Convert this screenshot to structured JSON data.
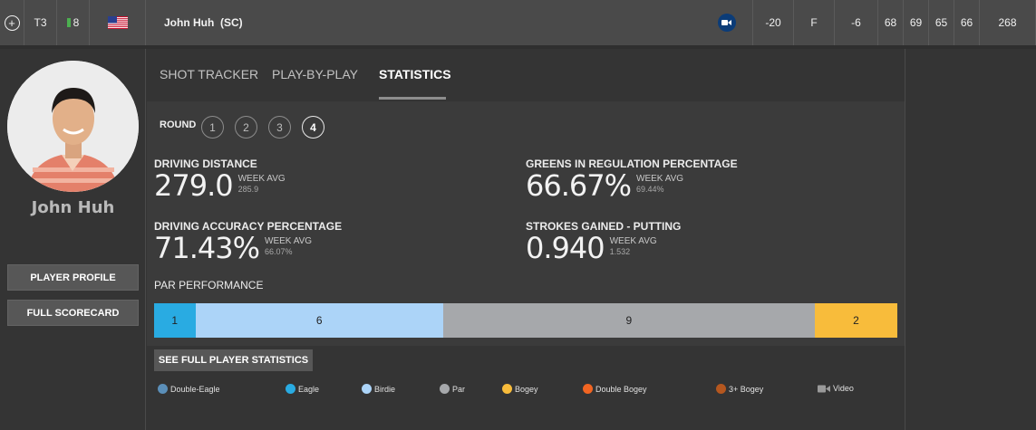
{
  "topbar": {
    "position": "T3",
    "movement": "8",
    "movement_color": "#4caf50",
    "country": "USA",
    "player_name": "John Huh  (SC)",
    "total": "-20",
    "thru": "F",
    "today": "-6",
    "rounds": [
      "68",
      "69",
      "65",
      "66"
    ],
    "strokes": "268",
    "icons": [
      "plus-circle-icon",
      "us-flag-icon",
      "video-camera-icon"
    ]
  },
  "player": {
    "name": "John Huh",
    "buttons": {
      "profile": "PLAYER PROFILE",
      "scorecard": "FULL SCORECARD"
    }
  },
  "tabs": {
    "shot_tracker": "SHOT TRACKER",
    "play_by_play": "PLAY-BY-PLAY",
    "statistics": "STATISTICS",
    "active": "STATISTICS"
  },
  "rounds": {
    "label": "ROUND",
    "options": [
      "1",
      "2",
      "3",
      "4"
    ],
    "selected": "4"
  },
  "stats": {
    "driving_distance": {
      "label": "DRIVING DISTANCE",
      "value": "279.0",
      "avg_label": "WEEK AVG",
      "avg": "285.9"
    },
    "driving_accuracy": {
      "label": "DRIVING ACCURACY PERCENTAGE",
      "value": "71.43%",
      "avg_label": "WEEK AVG",
      "avg": "66.07%"
    },
    "gir": {
      "label": "GREENS IN REGULATION PERCENTAGE",
      "value": "66.67%",
      "avg_label": "WEEK AVG",
      "avg": "69.44%"
    },
    "putting": {
      "label": "STROKES GAINED - PUTTING",
      "value": "0.940",
      "avg_label": "WEEK AVG",
      "avg": "1.532"
    }
  },
  "par_performance": {
    "title": "PAR PERFORMANCE",
    "segments": [
      {
        "type": "Eagle",
        "count": 1,
        "color": "#29abe2"
      },
      {
        "type": "Birdie",
        "count": 6,
        "color": "#acd4f8"
      },
      {
        "type": "Par",
        "count": 9,
        "color": "#a6a8ab"
      },
      {
        "type": "Bogey",
        "count": 2,
        "color": "#f8bc3b"
      }
    ]
  },
  "see_full_stats": "SEE FULL PLAYER STATISTICS",
  "legend": [
    {
      "label": "Double-Eagle",
      "color": "#5b8fb9"
    },
    {
      "label": "Eagle",
      "color": "#29abe2"
    },
    {
      "label": "Birdie",
      "color": "#acd4f8"
    },
    {
      "label": "Par",
      "color": "#a6a8ab"
    },
    {
      "label": "Bogey",
      "color": "#f8bc3b"
    },
    {
      "label": "Double Bogey",
      "color": "#f26522"
    },
    {
      "label": "3+ Bogey",
      "color": "#b5571f"
    },
    {
      "label": "Video",
      "color": "#9a9a9a"
    }
  ]
}
